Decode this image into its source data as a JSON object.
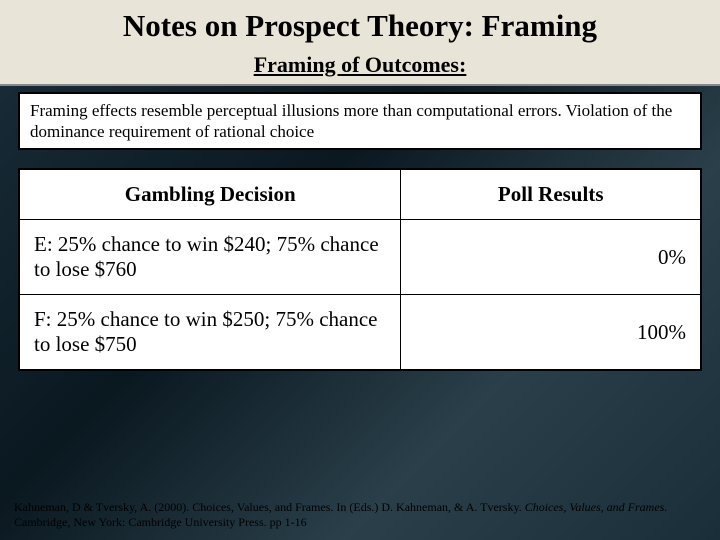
{
  "title": "Notes on Prospect Theory: Framing",
  "subtitle": "Framing of Outcomes:",
  "description": "Framing effects resemble perceptual illusions more than computational errors.  Violation of the dominance requirement of rational choice",
  "table": {
    "columns": [
      "Gambling Decision",
      "Poll Results"
    ],
    "rows": [
      {
        "decision": "E: 25% chance to win $240; 75% chance to lose $760",
        "result": "0%"
      },
      {
        "decision": "F: 25% chance to win $250; 75% chance to lose $750",
        "result": "100%"
      }
    ],
    "header_fontsize": 21,
    "cell_fontsize": 21,
    "border_color": "#000000",
    "background_color": "#ffffff"
  },
  "citation": {
    "part1": "Kahneman, D & Tversky, A. (2000). Choices, Values, and Frames.  In (Eds.) D. Kahneman, & A. Tversky. ",
    "ital1": "Choices, Values, and Frames.",
    "part2": " Cambridge, New York: Cambridge University Press. pp 1-16"
  },
  "colors": {
    "title_band_bg": "#e8e4d8",
    "body_bg_gradient": [
      "#1a2e3a",
      "#0a1820",
      "#2a3f4a"
    ],
    "text": "#000000"
  }
}
